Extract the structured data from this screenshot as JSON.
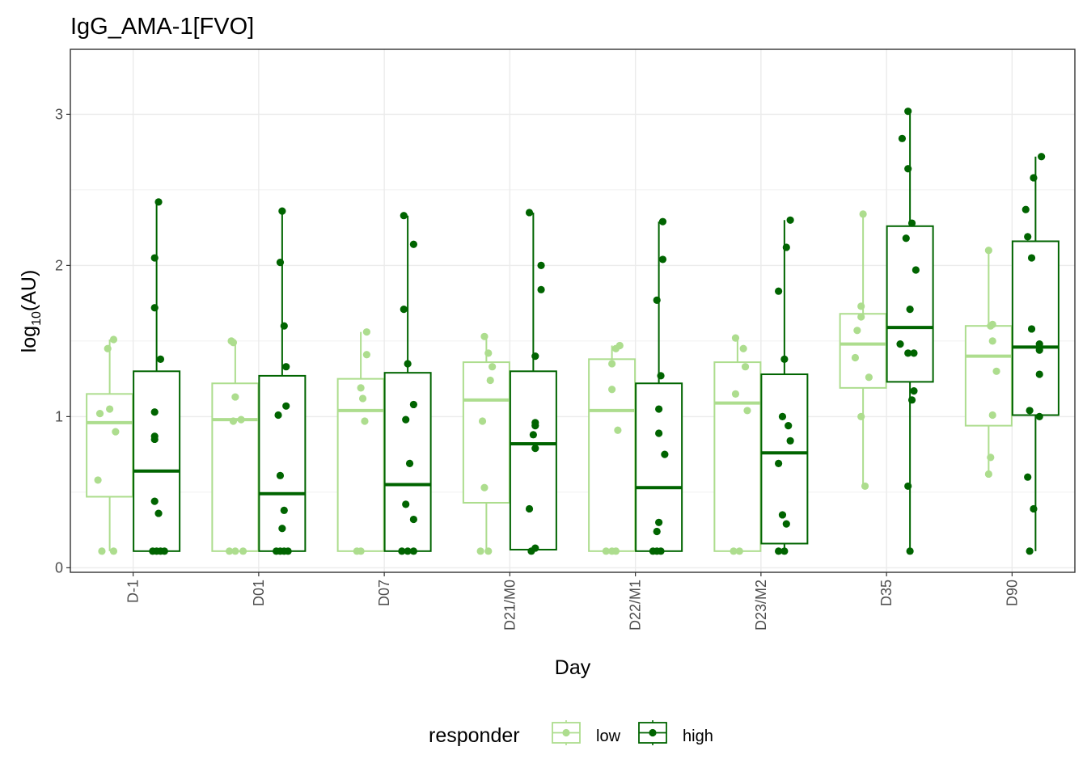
{
  "chart_data": {
    "type": "box",
    "title": "IgG_AMA-1[FVO]",
    "xlabel": "Day",
    "ylabel": "log10(AU)",
    "ylabel_base": "log",
    "ylabel_sub": "10",
    "ylabel_rest": "(AU)",
    "ylim": [
      -0.03,
      3.43
    ],
    "yticks": [
      0,
      1,
      2,
      3
    ],
    "grid": true,
    "legend": {
      "title": "responder",
      "position": "bottom"
    },
    "categories": [
      "D-1",
      "D01",
      "D07",
      "D21/M0",
      "D22/M1",
      "D23/M2",
      "D35",
      "D90"
    ],
    "series": [
      {
        "name": "low",
        "color": "#addd8e",
        "boxes": [
          {
            "min": 0.11,
            "q1": 0.47,
            "median": 0.96,
            "q3": 1.15,
            "max": 1.51,
            "points": [
              [
                -0.4,
                0.11
              ],
              [
                0.2,
                0.11
              ],
              [
                -0.6,
                0.58
              ],
              [
                -0.5,
                1.02
              ],
              [
                0.0,
                1.05
              ],
              [
                0.3,
                0.9
              ],
              [
                -0.1,
                1.45
              ],
              [
                0.2,
                1.51
              ]
            ]
          },
          {
            "min": 0.11,
            "q1": 0.11,
            "median": 0.98,
            "q3": 1.22,
            "max": 1.5,
            "points": [
              [
                -0.3,
                0.11
              ],
              [
                0.0,
                0.11
              ],
              [
                0.4,
                0.11
              ],
              [
                -0.1,
                0.97
              ],
              [
                0.3,
                0.98
              ],
              [
                0.0,
                1.13
              ],
              [
                -0.2,
                1.5
              ],
              [
                -0.1,
                1.49
              ]
            ]
          },
          {
            "min": 0.11,
            "q1": 0.11,
            "median": 1.04,
            "q3": 1.25,
            "max": 1.56,
            "points": [
              [
                -0.2,
                0.11
              ],
              [
                0.0,
                0.11
              ],
              [
                0.2,
                0.97
              ],
              [
                0.1,
                1.12
              ],
              [
                0.0,
                1.19
              ],
              [
                0.3,
                1.41
              ],
              [
                0.3,
                1.56
              ]
            ]
          },
          {
            "min": 0.11,
            "q1": 0.43,
            "median": 1.11,
            "q3": 1.36,
            "max": 1.53,
            "points": [
              [
                -0.3,
                0.11
              ],
              [
                0.1,
                0.11
              ],
              [
                -0.1,
                0.53
              ],
              [
                -0.2,
                0.97
              ],
              [
                0.2,
                1.24
              ],
              [
                0.3,
                1.33
              ],
              [
                0.1,
                1.42
              ],
              [
                -0.1,
                1.53
              ]
            ]
          },
          {
            "min": 0.11,
            "q1": 0.11,
            "median": 1.04,
            "q3": 1.38,
            "max": 1.47,
            "points": [
              [
                -0.3,
                0.11
              ],
              [
                0.0,
                0.11
              ],
              [
                0.2,
                0.11
              ],
              [
                0.3,
                0.91
              ],
              [
                0.0,
                1.18
              ],
              [
                0.0,
                1.35
              ],
              [
                0.2,
                1.45
              ],
              [
                0.4,
                1.47
              ]
            ]
          },
          {
            "min": 0.11,
            "q1": 0.11,
            "median": 1.09,
            "q3": 1.36,
            "max": 1.52,
            "points": [
              [
                -0.2,
                0.11
              ],
              [
                0.1,
                0.11
              ],
              [
                0.5,
                1.04
              ],
              [
                -0.1,
                1.15
              ],
              [
                0.4,
                1.33
              ],
              [
                0.3,
                1.45
              ],
              [
                -0.1,
                1.52
              ]
            ]
          },
          {
            "min": 0.54,
            "q1": 1.19,
            "median": 1.48,
            "q3": 1.68,
            "max": 2.34,
            "points": [
              [
                0.1,
                0.54
              ],
              [
                -0.1,
                1.0
              ],
              [
                0.3,
                1.26
              ],
              [
                -0.4,
                1.39
              ],
              [
                -0.3,
                1.57
              ],
              [
                -0.1,
                1.66
              ],
              [
                -0.1,
                1.73
              ],
              [
                0.0,
                2.34
              ]
            ]
          },
          {
            "min": 0.62,
            "q1": 0.94,
            "median": 1.4,
            "q3": 1.6,
            "max": 2.1,
            "points": [
              [
                0.0,
                0.62
              ],
              [
                0.1,
                0.73
              ],
              [
                0.2,
                1.01
              ],
              [
                0.4,
                1.3
              ],
              [
                0.2,
                1.5
              ],
              [
                0.1,
                1.6
              ],
              [
                0.2,
                1.61
              ],
              [
                0.0,
                2.1
              ]
            ]
          }
        ]
      },
      {
        "name": "high",
        "color": "#006400",
        "boxes": [
          {
            "min": 0.11,
            "q1": 0.11,
            "median": 0.64,
            "q3": 1.3,
            "max": 2.42,
            "points": [
              [
                -0.2,
                0.11
              ],
              [
                0.0,
                0.11
              ],
              [
                0.2,
                0.11
              ],
              [
                0.4,
                0.11
              ],
              [
                0.1,
                0.36
              ],
              [
                -0.1,
                0.44
              ],
              [
                -0.1,
                0.85
              ],
              [
                -0.1,
                0.87
              ],
              [
                -0.1,
                1.03
              ],
              [
                0.2,
                1.38
              ],
              [
                -0.1,
                1.72
              ],
              [
                -0.1,
                2.05
              ],
              [
                0.1,
                2.42
              ]
            ]
          },
          {
            "min": 0.11,
            "q1": 0.11,
            "median": 0.49,
            "q3": 1.27,
            "max": 2.36,
            "points": [
              [
                -0.3,
                0.11
              ],
              [
                -0.1,
                0.11
              ],
              [
                0.1,
                0.11
              ],
              [
                0.3,
                0.11
              ],
              [
                0.0,
                0.26
              ],
              [
                0.1,
                0.38
              ],
              [
                -0.1,
                0.61
              ],
              [
                -0.2,
                1.01
              ],
              [
                0.2,
                1.07
              ],
              [
                0.2,
                1.33
              ],
              [
                0.1,
                1.6
              ],
              [
                -0.1,
                2.02
              ],
              [
                0.0,
                2.36
              ]
            ]
          },
          {
            "min": 0.11,
            "q1": 0.11,
            "median": 0.55,
            "q3": 1.29,
            "max": 2.33,
            "points": [
              [
                -0.3,
                0.11
              ],
              [
                0.0,
                0.11
              ],
              [
                0.3,
                0.11
              ],
              [
                0.3,
                0.32
              ],
              [
                -0.1,
                0.42
              ],
              [
                0.1,
                0.69
              ],
              [
                -0.1,
                0.98
              ],
              [
                0.3,
                1.08
              ],
              [
                0.0,
                1.35
              ],
              [
                -0.2,
                1.71
              ],
              [
                0.3,
                2.14
              ],
              [
                -0.2,
                2.33
              ]
            ]
          },
          {
            "min": 0.11,
            "q1": 0.12,
            "median": 0.82,
            "q3": 1.3,
            "max": 2.35,
            "points": [
              [
                -0.1,
                0.11
              ],
              [
                0.1,
                0.13
              ],
              [
                -0.2,
                0.39
              ],
              [
                0.1,
                0.79
              ],
              [
                0.0,
                0.88
              ],
              [
                0.1,
                0.94
              ],
              [
                0.1,
                0.96
              ],
              [
                0.1,
                1.4
              ],
              [
                0.4,
                1.84
              ],
              [
                0.4,
                2.0
              ],
              [
                -0.2,
                2.35
              ]
            ]
          },
          {
            "min": 0.11,
            "q1": 0.11,
            "median": 0.53,
            "q3": 1.22,
            "max": 2.29,
            "points": [
              [
                -0.3,
                0.11
              ],
              [
                -0.1,
                0.11
              ],
              [
                0.1,
                0.11
              ],
              [
                -0.1,
                0.24
              ],
              [
                0.0,
                0.3
              ],
              [
                0.3,
                0.75
              ],
              [
                0.0,
                0.89
              ],
              [
                0.0,
                1.05
              ],
              [
                0.1,
                1.27
              ],
              [
                -0.1,
                1.77
              ],
              [
                0.2,
                2.04
              ],
              [
                0.2,
                2.29
              ]
            ]
          },
          {
            "min": 0.11,
            "q1": 0.16,
            "median": 0.76,
            "q3": 1.28,
            "max": 2.3,
            "points": [
              [
                -0.3,
                0.11
              ],
              [
                0.0,
                0.11
              ],
              [
                0.1,
                0.29
              ],
              [
                -0.1,
                0.35
              ],
              [
                -0.3,
                0.69
              ],
              [
                0.3,
                0.84
              ],
              [
                0.2,
                0.94
              ],
              [
                -0.1,
                1.0
              ],
              [
                0.0,
                1.38
              ],
              [
                -0.3,
                1.83
              ],
              [
                0.1,
                2.12
              ],
              [
                0.3,
                2.3
              ]
            ]
          },
          {
            "min": 0.11,
            "q1": 1.23,
            "median": 1.59,
            "q3": 2.26,
            "max": 3.02,
            "points": [
              [
                0.0,
                0.11
              ],
              [
                -0.1,
                0.54
              ],
              [
                0.1,
                1.11
              ],
              [
                0.2,
                1.17
              ],
              [
                -0.1,
                1.42
              ],
              [
                0.2,
                1.42
              ],
              [
                -0.5,
                1.48
              ],
              [
                0.0,
                1.71
              ],
              [
                0.3,
                1.97
              ],
              [
                -0.2,
                2.18
              ],
              [
                0.1,
                2.28
              ],
              [
                -0.1,
                2.64
              ],
              [
                -0.4,
                2.84
              ],
              [
                -0.1,
                3.02
              ]
            ]
          },
          {
            "min": 0.11,
            "q1": 1.01,
            "median": 1.46,
            "q3": 2.16,
            "max": 2.72,
            "points": [
              [
                -0.3,
                0.11
              ],
              [
                -0.1,
                0.39
              ],
              [
                -0.4,
                0.6
              ],
              [
                0.2,
                1.0
              ],
              [
                -0.3,
                1.04
              ],
              [
                0.2,
                1.28
              ],
              [
                0.2,
                1.44
              ],
              [
                0.2,
                1.48
              ],
              [
                -0.2,
                1.58
              ],
              [
                -0.2,
                2.05
              ],
              [
                -0.4,
                2.19
              ],
              [
                -0.5,
                2.37
              ],
              [
                -0.1,
                2.58
              ],
              [
                0.3,
                2.72
              ]
            ]
          }
        ]
      }
    ]
  }
}
